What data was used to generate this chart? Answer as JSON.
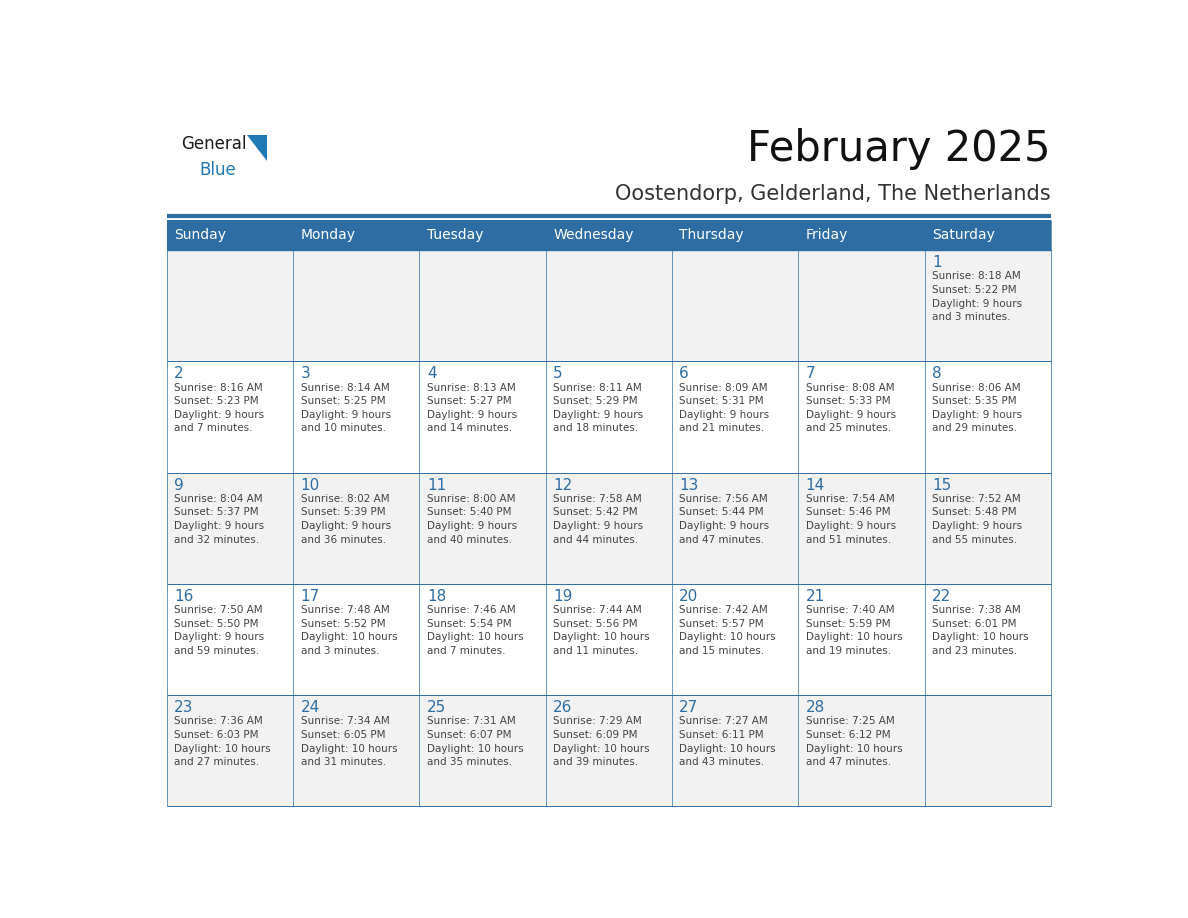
{
  "title": "February 2025",
  "subtitle": "Oostendorp, Gelderland, The Netherlands",
  "header_bg": "#2e6da4",
  "header_text": "#ffffff",
  "cell_bg_odd": "#f2f2f2",
  "cell_bg_even": "#ffffff",
  "day_number_color": "#2e6da4",
  "text_color": "#444444",
  "border_color": "#2e6da4",
  "logo_text_color": "#1a1a1a",
  "logo_blue_color": "#2078b4",
  "days_of_week": [
    "Sunday",
    "Monday",
    "Tuesday",
    "Wednesday",
    "Thursday",
    "Friday",
    "Saturday"
  ],
  "weeks": [
    [
      {
        "day": null,
        "info": ""
      },
      {
        "day": null,
        "info": ""
      },
      {
        "day": null,
        "info": ""
      },
      {
        "day": null,
        "info": ""
      },
      {
        "day": null,
        "info": ""
      },
      {
        "day": null,
        "info": ""
      },
      {
        "day": 1,
        "info": "Sunrise: 8:18 AM\nSunset: 5:22 PM\nDaylight: 9 hours\nand 3 minutes."
      }
    ],
    [
      {
        "day": 2,
        "info": "Sunrise: 8:16 AM\nSunset: 5:23 PM\nDaylight: 9 hours\nand 7 minutes."
      },
      {
        "day": 3,
        "info": "Sunrise: 8:14 AM\nSunset: 5:25 PM\nDaylight: 9 hours\nand 10 minutes."
      },
      {
        "day": 4,
        "info": "Sunrise: 8:13 AM\nSunset: 5:27 PM\nDaylight: 9 hours\nand 14 minutes."
      },
      {
        "day": 5,
        "info": "Sunrise: 8:11 AM\nSunset: 5:29 PM\nDaylight: 9 hours\nand 18 minutes."
      },
      {
        "day": 6,
        "info": "Sunrise: 8:09 AM\nSunset: 5:31 PM\nDaylight: 9 hours\nand 21 minutes."
      },
      {
        "day": 7,
        "info": "Sunrise: 8:08 AM\nSunset: 5:33 PM\nDaylight: 9 hours\nand 25 minutes."
      },
      {
        "day": 8,
        "info": "Sunrise: 8:06 AM\nSunset: 5:35 PM\nDaylight: 9 hours\nand 29 minutes."
      }
    ],
    [
      {
        "day": 9,
        "info": "Sunrise: 8:04 AM\nSunset: 5:37 PM\nDaylight: 9 hours\nand 32 minutes."
      },
      {
        "day": 10,
        "info": "Sunrise: 8:02 AM\nSunset: 5:39 PM\nDaylight: 9 hours\nand 36 minutes."
      },
      {
        "day": 11,
        "info": "Sunrise: 8:00 AM\nSunset: 5:40 PM\nDaylight: 9 hours\nand 40 minutes."
      },
      {
        "day": 12,
        "info": "Sunrise: 7:58 AM\nSunset: 5:42 PM\nDaylight: 9 hours\nand 44 minutes."
      },
      {
        "day": 13,
        "info": "Sunrise: 7:56 AM\nSunset: 5:44 PM\nDaylight: 9 hours\nand 47 minutes."
      },
      {
        "day": 14,
        "info": "Sunrise: 7:54 AM\nSunset: 5:46 PM\nDaylight: 9 hours\nand 51 minutes."
      },
      {
        "day": 15,
        "info": "Sunrise: 7:52 AM\nSunset: 5:48 PM\nDaylight: 9 hours\nand 55 minutes."
      }
    ],
    [
      {
        "day": 16,
        "info": "Sunrise: 7:50 AM\nSunset: 5:50 PM\nDaylight: 9 hours\nand 59 minutes."
      },
      {
        "day": 17,
        "info": "Sunrise: 7:48 AM\nSunset: 5:52 PM\nDaylight: 10 hours\nand 3 minutes."
      },
      {
        "day": 18,
        "info": "Sunrise: 7:46 AM\nSunset: 5:54 PM\nDaylight: 10 hours\nand 7 minutes."
      },
      {
        "day": 19,
        "info": "Sunrise: 7:44 AM\nSunset: 5:56 PM\nDaylight: 10 hours\nand 11 minutes."
      },
      {
        "day": 20,
        "info": "Sunrise: 7:42 AM\nSunset: 5:57 PM\nDaylight: 10 hours\nand 15 minutes."
      },
      {
        "day": 21,
        "info": "Sunrise: 7:40 AM\nSunset: 5:59 PM\nDaylight: 10 hours\nand 19 minutes."
      },
      {
        "day": 22,
        "info": "Sunrise: 7:38 AM\nSunset: 6:01 PM\nDaylight: 10 hours\nand 23 minutes."
      }
    ],
    [
      {
        "day": 23,
        "info": "Sunrise: 7:36 AM\nSunset: 6:03 PM\nDaylight: 10 hours\nand 27 minutes."
      },
      {
        "day": 24,
        "info": "Sunrise: 7:34 AM\nSunset: 6:05 PM\nDaylight: 10 hours\nand 31 minutes."
      },
      {
        "day": 25,
        "info": "Sunrise: 7:31 AM\nSunset: 6:07 PM\nDaylight: 10 hours\nand 35 minutes."
      },
      {
        "day": 26,
        "info": "Sunrise: 7:29 AM\nSunset: 6:09 PM\nDaylight: 10 hours\nand 39 minutes."
      },
      {
        "day": 27,
        "info": "Sunrise: 7:27 AM\nSunset: 6:11 PM\nDaylight: 10 hours\nand 43 minutes."
      },
      {
        "day": 28,
        "info": "Sunrise: 7:25 AM\nSunset: 6:12 PM\nDaylight: 10 hours\nand 47 minutes."
      },
      {
        "day": null,
        "info": ""
      }
    ]
  ]
}
